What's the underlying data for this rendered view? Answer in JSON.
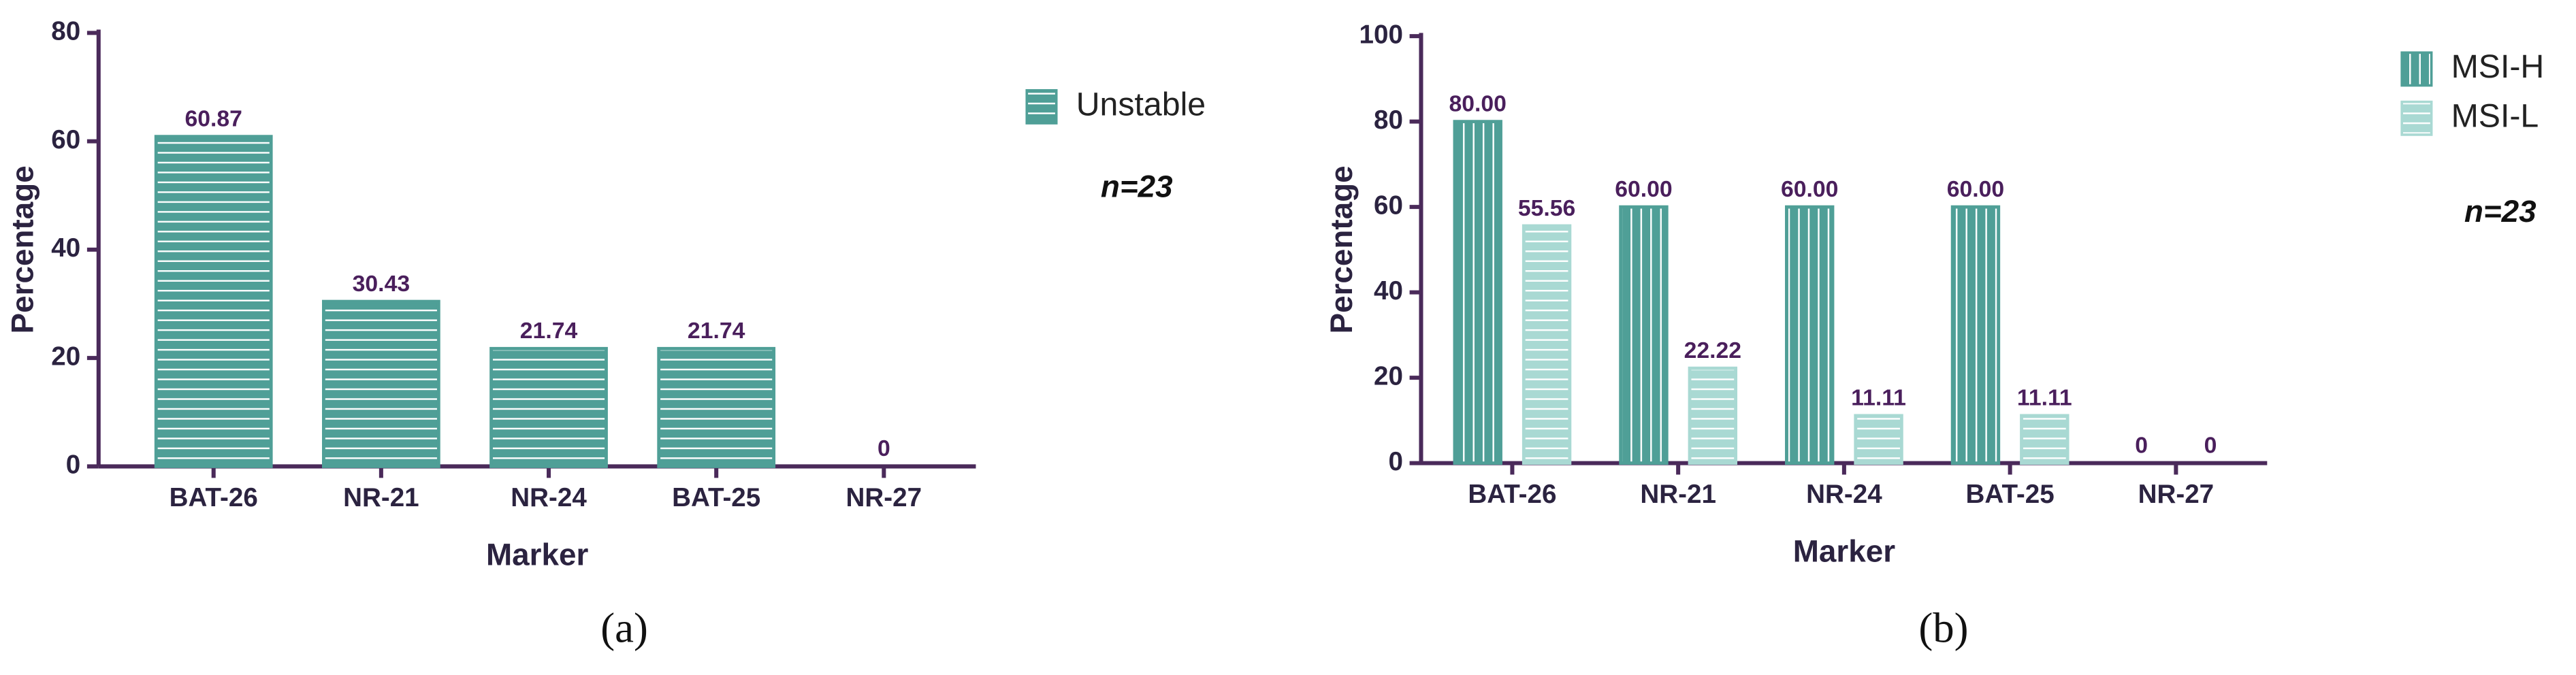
{
  "chart_data": [
    {
      "type": "bar",
      "categories": [
        "BAT-26",
        "NR-21",
        "NR-24",
        "BAT-25",
        "NR-27"
      ],
      "series": [
        {
          "name": "Unstable",
          "color": "#4f9f97",
          "hatch": "horizontal",
          "values": [
            60.87,
            30.43,
            21.74,
            21.74,
            0
          ]
        }
      ],
      "ylim": [
        0,
        80
      ],
      "yticks": [
        0,
        20,
        40,
        60,
        80
      ],
      "x_label": "Marker",
      "y_label": "Percentage",
      "annotation": "n=23",
      "caption": "(a)"
    },
    {
      "type": "bar",
      "categories": [
        "BAT-26",
        "NR-21",
        "NR-24",
        "BAT-25",
        "NR-27"
      ],
      "series": [
        {
          "name": "MSI-H",
          "color": "#4f9f97",
          "hatch": "vertical",
          "values": [
            80,
            60,
            60,
            60,
            0
          ],
          "value_labels": [
            "80.00",
            "60.00",
            "60.00",
            "60.00",
            "0"
          ]
        },
        {
          "name": "MSI-L",
          "color": "#a9d9d3",
          "hatch": "horizontal",
          "values": [
            55.56,
            22.22,
            11.11,
            11.11,
            0
          ],
          "value_labels": [
            "55.56",
            "22.22",
            "11.11",
            "11.11",
            "0"
          ]
        }
      ],
      "ylim": [
        0,
        100
      ],
      "yticks": [
        0,
        20,
        40,
        60,
        80,
        100
      ],
      "x_label": "Marker",
      "y_label": "Percentage",
      "annotation": "n=23",
      "caption": "(b)"
    }
  ]
}
